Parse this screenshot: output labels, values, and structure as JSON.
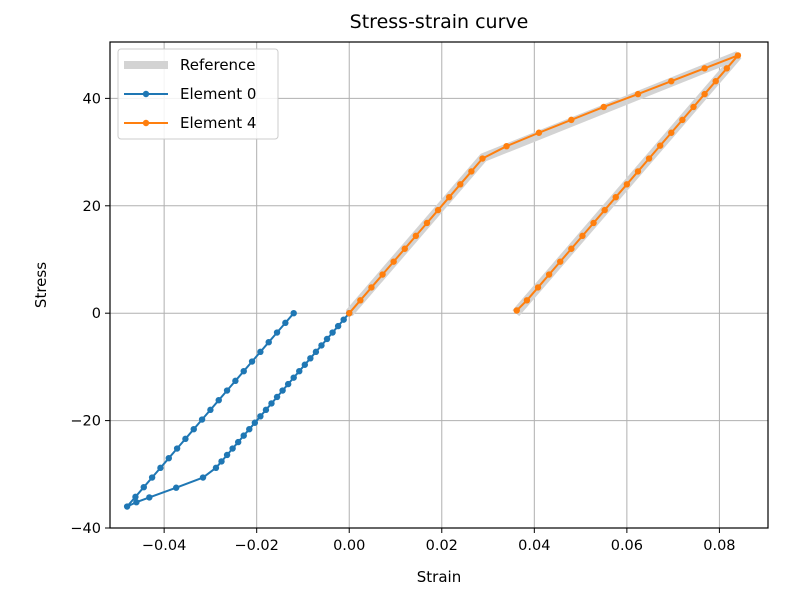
{
  "chart_data": {
    "type": "line",
    "title": "Stress-strain curve",
    "xlabel": "Strain",
    "ylabel": "Stress",
    "xlim": [
      -0.0517,
      0.0905
    ],
    "ylim": [
      -40,
      50.5
    ],
    "xticks": [
      -0.04,
      -0.02,
      0.0,
      0.02,
      0.04,
      0.06,
      0.08
    ],
    "xtick_labels": [
      "−0.04",
      "−0.02",
      "0.00",
      "0.02",
      "0.04",
      "0.06",
      "0.08"
    ],
    "yticks": [
      -40,
      -20,
      0,
      20,
      40
    ],
    "ytick_labels": [
      "−40",
      "−20",
      "0",
      "20",
      "40"
    ],
    "grid": true,
    "legend_position": "top-left",
    "series": [
      {
        "name": "Reference",
        "color": "#d3d3d3",
        "style": "thick-line",
        "points": [
          [
            0.0,
            0.0
          ],
          [
            0.029,
            29.0
          ],
          [
            0.084,
            48.0
          ],
          [
            0.036,
            0.0
          ]
        ]
      },
      {
        "name": "Element 0",
        "color": "#1f77b4",
        "style": "line-markers",
        "points": [
          [
            0.0,
            0.0
          ],
          [
            -0.0012,
            -1.2
          ],
          [
            -0.0024,
            -2.4
          ],
          [
            -0.0036,
            -3.6
          ],
          [
            -0.0048,
            -4.8
          ],
          [
            -0.006,
            -6.0
          ],
          [
            -0.0072,
            -7.2
          ],
          [
            -0.0084,
            -8.4
          ],
          [
            -0.0096,
            -9.6
          ],
          [
            -0.0108,
            -10.8
          ],
          [
            -0.012,
            -12.0
          ],
          [
            -0.0132,
            -13.2
          ],
          [
            -0.0144,
            -14.4
          ],
          [
            -0.0156,
            -15.6
          ],
          [
            -0.0168,
            -16.8
          ],
          [
            -0.018,
            -18.0
          ],
          [
            -0.0192,
            -19.2
          ],
          [
            -0.0204,
            -20.4
          ],
          [
            -0.0216,
            -21.6
          ],
          [
            -0.0228,
            -22.8
          ],
          [
            -0.024,
            -24.0
          ],
          [
            -0.0252,
            -25.2
          ],
          [
            -0.0264,
            -26.4
          ],
          [
            -0.0276,
            -27.6
          ],
          [
            -0.0288,
            -28.8
          ],
          [
            -0.0316,
            -30.6
          ],
          [
            -0.0374,
            -32.5
          ],
          [
            -0.0432,
            -34.3
          ],
          [
            -0.046,
            -35.2
          ],
          [
            -0.048,
            -36.0
          ],
          [
            -0.0462,
            -34.2
          ],
          [
            -0.0444,
            -32.4
          ],
          [
            -0.0426,
            -30.6
          ],
          [
            -0.0408,
            -28.8
          ],
          [
            -0.039,
            -27.0
          ],
          [
            -0.0372,
            -25.2
          ],
          [
            -0.0354,
            -23.4
          ],
          [
            -0.0336,
            -21.6
          ],
          [
            -0.0318,
            -19.8
          ],
          [
            -0.03,
            -18.0
          ],
          [
            -0.0282,
            -16.2
          ],
          [
            -0.0264,
            -14.4
          ],
          [
            -0.0246,
            -12.6
          ],
          [
            -0.0228,
            -10.8
          ],
          [
            -0.021,
            -9.0
          ],
          [
            -0.0192,
            -7.2
          ],
          [
            -0.0174,
            -5.4
          ],
          [
            -0.0156,
            -3.6
          ],
          [
            -0.0138,
            -1.8
          ],
          [
            -0.012,
            0.0
          ]
        ]
      },
      {
        "name": "Element 4",
        "color": "#ff7f0e",
        "style": "line-markers",
        "points": [
          [
            0.0,
            0.0
          ],
          [
            0.0024,
            2.4
          ],
          [
            0.0048,
            4.8
          ],
          [
            0.0072,
            7.2
          ],
          [
            0.0096,
            9.6
          ],
          [
            0.012,
            12.0
          ],
          [
            0.0144,
            14.4
          ],
          [
            0.0168,
            16.8
          ],
          [
            0.0192,
            19.2
          ],
          [
            0.0216,
            21.6
          ],
          [
            0.024,
            24.0
          ],
          [
            0.0264,
            26.4
          ],
          [
            0.0288,
            28.8
          ],
          [
            0.034,
            31.1
          ],
          [
            0.041,
            33.6
          ],
          [
            0.048,
            36.0
          ],
          [
            0.055,
            38.4
          ],
          [
            0.0624,
            40.8
          ],
          [
            0.0696,
            43.2
          ],
          [
            0.0768,
            45.6
          ],
          [
            0.084,
            48.0
          ],
          [
            0.0816,
            45.6
          ],
          [
            0.0792,
            43.2
          ],
          [
            0.0768,
            40.8
          ],
          [
            0.0744,
            38.4
          ],
          [
            0.072,
            36.0
          ],
          [
            0.0696,
            33.6
          ],
          [
            0.0672,
            31.2
          ],
          [
            0.0648,
            28.8
          ],
          [
            0.0624,
            26.4
          ],
          [
            0.06,
            24.0
          ],
          [
            0.0576,
            21.6
          ],
          [
            0.0552,
            19.2
          ],
          [
            0.0528,
            16.8
          ],
          [
            0.0504,
            14.4
          ],
          [
            0.048,
            12.0
          ],
          [
            0.0456,
            9.6
          ],
          [
            0.0432,
            7.2
          ],
          [
            0.0408,
            4.8
          ],
          [
            0.0384,
            2.4
          ],
          [
            0.0362,
            0.5
          ]
        ]
      }
    ]
  }
}
